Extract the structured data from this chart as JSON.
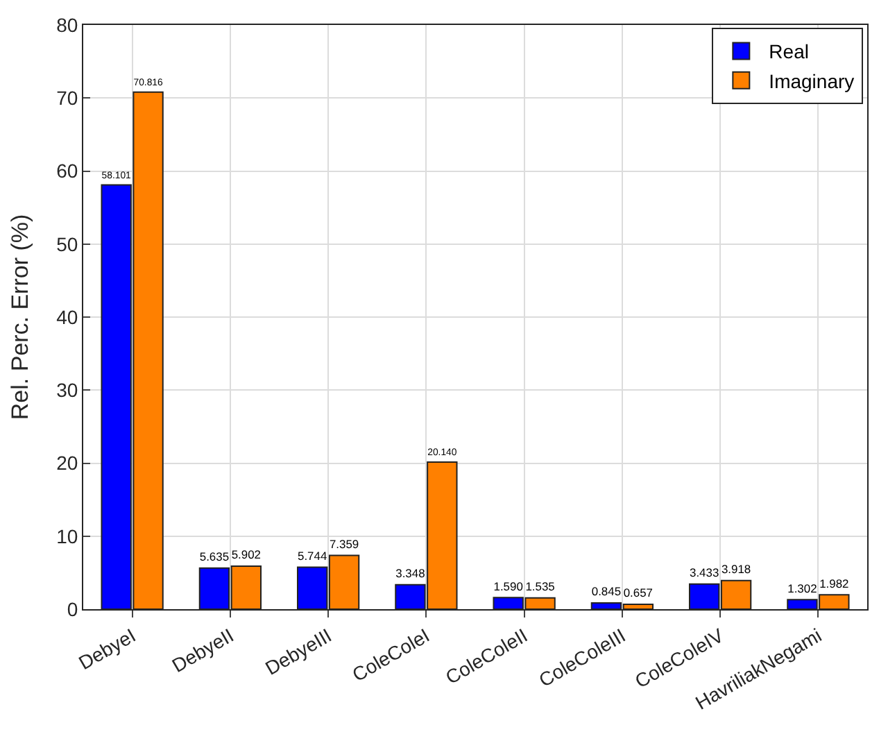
{
  "chart_data": {
    "type": "bar",
    "ylabel": "Rel. Perc. Error (%)",
    "categories": [
      "DebyeI",
      "DebyeII",
      "DebyeIII",
      "ColeColeI",
      "ColeColeII",
      "ColeColeIII",
      "ColeColeIV",
      "HavriliakNegami"
    ],
    "series": [
      {
        "name": "Real",
        "color": "#0000ff",
        "values": [
          58.101,
          5.635,
          5.744,
          3.348,
          1.59,
          0.845,
          3.433,
          1.302
        ],
        "value_labels": [
          "58.101",
          "5.635",
          "5.744",
          "3.348",
          "1.590",
          "0.845",
          "3.433",
          "1.302"
        ]
      },
      {
        "name": "Imaginary",
        "color": "#ff8000",
        "values": [
          70.816,
          5.902,
          7.359,
          20.14,
          1.535,
          0.657,
          3.918,
          1.982
        ],
        "value_labels": [
          "70.816",
          "5.902",
          "7.359",
          "20.140",
          "1.535",
          "0.657",
          "3.918",
          "1.982"
        ]
      }
    ],
    "ylim": [
      0,
      80
    ],
    "yticks": [
      0,
      10,
      20,
      30,
      40,
      50,
      60,
      70,
      80
    ],
    "grid": true,
    "legend": "top right"
  }
}
